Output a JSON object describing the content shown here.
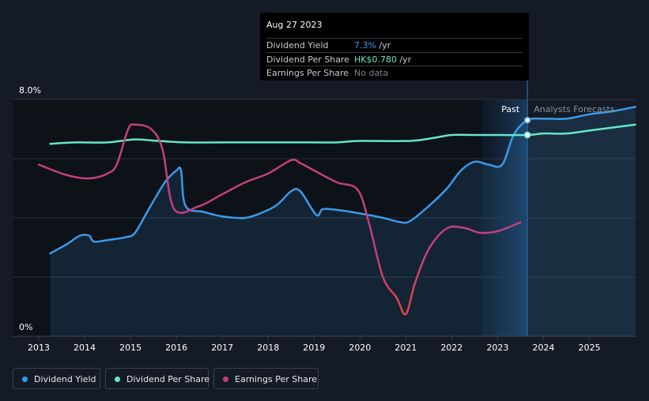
{
  "tooltip": {
    "date": "Aug 27 2023",
    "rows": [
      {
        "label": "Dividend Yield",
        "value": "7.3%",
        "unit": " /yr",
        "color": "#3b9ae8"
      },
      {
        "label": "Dividend Per Share",
        "value": "HK$0.780",
        "unit": " /yr",
        "color": "#63e6c9"
      },
      {
        "label": "Earnings Per Share",
        "value": "No data",
        "unit": "",
        "color": "#7c828c"
      }
    ]
  },
  "labels": {
    "past": "Past",
    "forecast": "Analysts Forecasts"
  },
  "legend": [
    {
      "label": "Dividend Yield",
      "color": "#3b9ae8"
    },
    {
      "label": "Dividend Per Share",
      "color": "#63e6c9"
    },
    {
      "label": "Earnings Per Share",
      "color": "#c2407f"
    }
  ],
  "chart_data": {
    "type": "line",
    "y_tick_labels": [
      "8.0%",
      "0%"
    ],
    "ylim": [
      0,
      8
    ],
    "xlim": [
      2012.75,
      2026.0
    ],
    "x_ticks": [
      2013,
      2014,
      2015,
      2016,
      2017,
      2018,
      2019,
      2020,
      2021,
      2022,
      2023,
      2024,
      2025
    ],
    "grid": true,
    "past_end_x": 2023.65,
    "forecast_start_x": 2022.65,
    "legend_position": "bottom-left",
    "series": [
      {
        "name": "Dividend Yield",
        "color": "#3b9ae8",
        "area": true,
        "points": [
          [
            2013.25,
            2.8
          ],
          [
            2013.6,
            3.1
          ],
          [
            2013.9,
            3.4
          ],
          [
            2014.1,
            3.4
          ],
          [
            2014.2,
            3.2
          ],
          [
            2014.5,
            3.25
          ],
          [
            2014.9,
            3.35
          ],
          [
            2015.1,
            3.5
          ],
          [
            2015.4,
            4.3
          ],
          [
            2015.75,
            5.2
          ],
          [
            2016.0,
            5.6
          ],
          [
            2016.1,
            5.6
          ],
          [
            2016.2,
            4.4
          ],
          [
            2016.6,
            4.2
          ],
          [
            2017.0,
            4.05
          ],
          [
            2017.5,
            4.0
          ],
          [
            2017.9,
            4.2
          ],
          [
            2018.2,
            4.45
          ],
          [
            2018.5,
            4.9
          ],
          [
            2018.7,
            4.9
          ],
          [
            2019.05,
            4.1
          ],
          [
            2019.2,
            4.3
          ],
          [
            2019.6,
            4.25
          ],
          [
            2020.0,
            4.15
          ],
          [
            2020.5,
            4.0
          ],
          [
            2020.9,
            3.85
          ],
          [
            2021.1,
            3.9
          ],
          [
            2021.5,
            4.4
          ],
          [
            2021.9,
            5.0
          ],
          [
            2022.2,
            5.6
          ],
          [
            2022.5,
            5.9
          ],
          [
            2022.8,
            5.8
          ],
          [
            2023.1,
            5.8
          ],
          [
            2023.35,
            6.8
          ],
          [
            2023.65,
            7.3
          ],
          [
            2024.0,
            7.35
          ],
          [
            2024.5,
            7.35
          ],
          [
            2025.0,
            7.5
          ],
          [
            2025.5,
            7.6
          ],
          [
            2026.0,
            7.75
          ]
        ]
      },
      {
        "name": "Dividend Per Share",
        "color": "#63e6c9",
        "area": false,
        "points": [
          [
            2013.25,
            6.5
          ],
          [
            2013.8,
            6.55
          ],
          [
            2014.5,
            6.55
          ],
          [
            2015.1,
            6.65
          ],
          [
            2015.6,
            6.6
          ],
          [
            2016.2,
            6.55
          ],
          [
            2017.0,
            6.55
          ],
          [
            2018.0,
            6.55
          ],
          [
            2019.0,
            6.55
          ],
          [
            2019.5,
            6.55
          ],
          [
            2020.0,
            6.6
          ],
          [
            2021.1,
            6.6
          ],
          [
            2021.6,
            6.7
          ],
          [
            2022.0,
            6.8
          ],
          [
            2022.5,
            6.8
          ],
          [
            2023.0,
            6.8
          ],
          [
            2023.65,
            6.8
          ],
          [
            2024.0,
            6.85
          ],
          [
            2024.5,
            6.85
          ],
          [
            2025.0,
            6.95
          ],
          [
            2025.5,
            7.05
          ],
          [
            2026.0,
            7.15
          ]
        ]
      },
      {
        "name": "Earnings Per Share",
        "color": "#c2407f",
        "area": false,
        "points": [
          [
            2013.0,
            5.8
          ],
          [
            2013.5,
            5.5
          ],
          [
            2013.9,
            5.35
          ],
          [
            2014.2,
            5.35
          ],
          [
            2014.5,
            5.5
          ],
          [
            2014.7,
            5.8
          ],
          [
            2014.95,
            7.0
          ],
          [
            2015.1,
            7.15
          ],
          [
            2015.45,
            7.0
          ],
          [
            2015.7,
            6.3
          ],
          [
            2015.95,
            4.3
          ],
          [
            2016.5,
            4.4
          ],
          [
            2017.0,
            4.8
          ],
          [
            2017.5,
            5.2
          ],
          [
            2018.0,
            5.5
          ],
          [
            2018.5,
            5.95
          ],
          [
            2018.7,
            5.85
          ],
          [
            2019.0,
            5.6
          ],
          [
            2019.5,
            5.2
          ],
          [
            2019.95,
            4.95
          ],
          [
            2020.2,
            3.8
          ],
          [
            2020.5,
            2.0
          ],
          [
            2020.8,
            1.3
          ],
          [
            2021.0,
            0.75
          ],
          [
            2021.2,
            1.8
          ],
          [
            2021.5,
            2.95
          ],
          [
            2021.9,
            3.65
          ],
          [
            2022.3,
            3.65
          ],
          [
            2022.6,
            3.5
          ],
          [
            2023.0,
            3.55
          ],
          [
            2023.5,
            3.85
          ]
        ]
      }
    ]
  }
}
